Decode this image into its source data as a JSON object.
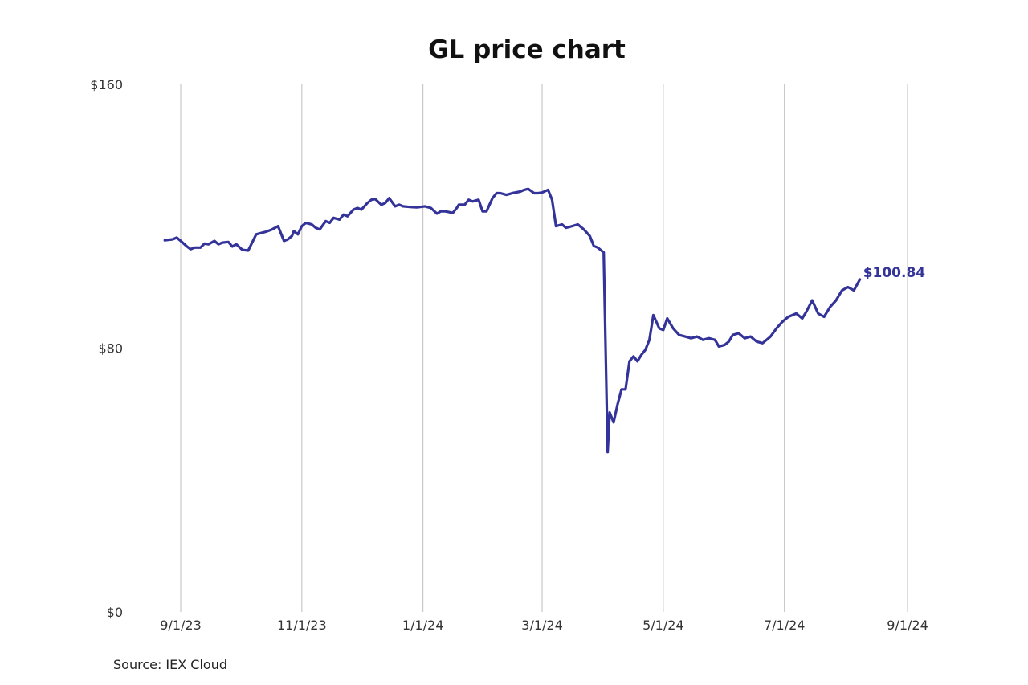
{
  "chart_data": {
    "type": "line",
    "title": "GL price chart",
    "source": "Source: IEX Cloud",
    "last_value_label": "$100.84",
    "xlabel": "",
    "ylabel": "",
    "ylim": [
      0,
      160
    ],
    "y_ticks": [
      {
        "value": 0,
        "label": "$0"
      },
      {
        "value": 80,
        "label": "$80"
      },
      {
        "value": 160,
        "label": "$160"
      }
    ],
    "x_ticks": [
      {
        "date": "2023-09-01",
        "label": "9/1/23"
      },
      {
        "date": "2023-11-01",
        "label": "11/1/23"
      },
      {
        "date": "2024-01-01",
        "label": "1/1/24"
      },
      {
        "date": "2024-03-01",
        "label": "3/1/24"
      },
      {
        "date": "2024-05-01",
        "label": "5/1/24"
      },
      {
        "date": "2024-07-01",
        "label": "7/1/24"
      },
      {
        "date": "2024-09-01",
        "label": "9/1/24"
      }
    ],
    "x_range": [
      "2023-08-24",
      "2024-09-01"
    ],
    "grid": "vertical",
    "series": [
      {
        "color": "#333399",
        "points": [
          [
            "2023-08-24",
            112.7
          ],
          [
            "2023-08-28",
            113.0
          ],
          [
            "2023-08-30",
            113.5
          ],
          [
            "2023-09-01",
            112.5
          ],
          [
            "2023-09-04",
            110.9
          ],
          [
            "2023-09-06",
            110.0
          ],
          [
            "2023-09-08",
            110.5
          ],
          [
            "2023-09-11",
            110.5
          ],
          [
            "2023-09-13",
            111.7
          ],
          [
            "2023-09-15",
            111.5
          ],
          [
            "2023-09-18",
            112.5
          ],
          [
            "2023-09-20",
            111.5
          ],
          [
            "2023-09-22",
            112.0
          ],
          [
            "2023-09-25",
            112.2
          ],
          [
            "2023-09-27",
            110.8
          ],
          [
            "2023-09-29",
            111.5
          ],
          [
            "2023-10-02",
            109.8
          ],
          [
            "2023-10-05",
            109.6
          ],
          [
            "2023-10-06",
            110.8
          ],
          [
            "2023-10-09",
            114.5
          ],
          [
            "2023-10-12",
            115.0
          ],
          [
            "2023-10-14",
            115.3
          ],
          [
            "2023-10-17",
            116.0
          ],
          [
            "2023-10-20",
            117.0
          ],
          [
            "2023-10-23",
            112.5
          ],
          [
            "2023-10-25",
            113.0
          ],
          [
            "2023-10-27",
            114.0
          ],
          [
            "2023-10-28",
            115.5
          ],
          [
            "2023-10-30",
            114.5
          ],
          [
            "2023-11-01",
            117.0
          ],
          [
            "2023-11-03",
            118.0
          ],
          [
            "2023-11-06",
            117.5
          ],
          [
            "2023-11-08",
            116.5
          ],
          [
            "2023-11-10",
            116.0
          ],
          [
            "2023-11-13",
            118.5
          ],
          [
            "2023-11-15",
            118.0
          ],
          [
            "2023-11-17",
            119.5
          ],
          [
            "2023-11-20",
            119.0
          ],
          [
            "2023-11-22",
            120.5
          ],
          [
            "2023-11-24",
            120.0
          ],
          [
            "2023-11-27",
            122.0
          ],
          [
            "2023-11-29",
            122.5
          ],
          [
            "2023-12-01",
            122.0
          ],
          [
            "2023-12-04",
            124.0
          ],
          [
            "2023-12-06",
            125.0
          ],
          [
            "2023-12-08",
            125.2
          ],
          [
            "2023-12-11",
            123.5
          ],
          [
            "2023-12-13",
            124.0
          ],
          [
            "2023-12-15",
            125.5
          ],
          [
            "2023-12-18",
            123.0
          ],
          [
            "2023-12-20",
            123.5
          ],
          [
            "2023-12-22",
            123.0
          ],
          [
            "2023-12-26",
            122.8
          ],
          [
            "2023-12-29",
            122.7
          ],
          [
            "2024-01-02",
            123.0
          ],
          [
            "2024-01-05",
            122.5
          ],
          [
            "2024-01-08",
            120.8
          ],
          [
            "2024-01-10",
            121.5
          ],
          [
            "2024-01-12",
            121.5
          ],
          [
            "2024-01-16",
            121.0
          ],
          [
            "2024-01-18",
            122.5
          ],
          [
            "2024-01-19",
            123.5
          ],
          [
            "2024-01-22",
            123.5
          ],
          [
            "2024-01-24",
            125.0
          ],
          [
            "2024-01-26",
            124.5
          ],
          [
            "2024-01-29",
            125.0
          ],
          [
            "2024-01-31",
            121.5
          ],
          [
            "2024-02-02",
            121.5
          ],
          [
            "2024-02-05",
            125.5
          ],
          [
            "2024-02-07",
            127.0
          ],
          [
            "2024-02-09",
            127.0
          ],
          [
            "2024-02-12",
            126.5
          ],
          [
            "2024-02-15",
            127.0
          ],
          [
            "2024-02-19",
            127.5
          ],
          [
            "2024-02-21",
            128.0
          ],
          [
            "2024-02-23",
            128.3
          ],
          [
            "2024-02-26",
            127.0
          ],
          [
            "2024-02-28",
            127.0
          ],
          [
            "2024-03-01",
            127.2
          ],
          [
            "2024-03-04",
            128.0
          ],
          [
            "2024-03-06",
            125.0
          ],
          [
            "2024-03-08",
            117.0
          ],
          [
            "2024-03-11",
            117.5
          ],
          [
            "2024-03-13",
            116.5
          ],
          [
            "2024-03-15",
            116.8
          ],
          [
            "2024-03-19",
            117.5
          ],
          [
            "2024-03-22",
            116.0
          ],
          [
            "2024-03-25",
            114.0
          ],
          [
            "2024-03-27",
            111.0
          ],
          [
            "2024-03-29",
            110.5
          ],
          [
            "2024-04-01",
            109.0
          ],
          [
            "2024-04-03",
            48.5
          ],
          [
            "2024-04-04",
            60.5
          ],
          [
            "2024-04-06",
            57.5
          ],
          [
            "2024-04-08",
            63.0
          ],
          [
            "2024-04-10",
            67.5
          ],
          [
            "2024-04-12",
            67.5
          ],
          [
            "2024-04-14",
            76.0
          ],
          [
            "2024-04-16",
            77.5
          ],
          [
            "2024-04-18",
            76.0
          ],
          [
            "2024-04-20",
            78.0
          ],
          [
            "2024-04-22",
            79.5
          ],
          [
            "2024-04-24",
            82.5
          ],
          [
            "2024-04-26",
            90.0
          ],
          [
            "2024-04-29",
            86.0
          ],
          [
            "2024-05-01",
            85.5
          ],
          [
            "2024-05-03",
            89.0
          ],
          [
            "2024-05-06",
            86.0
          ],
          [
            "2024-05-09",
            84.0
          ],
          [
            "2024-05-12",
            83.5
          ],
          [
            "2024-05-15",
            83.0
          ],
          [
            "2024-05-18",
            83.5
          ],
          [
            "2024-05-21",
            82.5
          ],
          [
            "2024-05-24",
            83.0
          ],
          [
            "2024-05-27",
            82.5
          ],
          [
            "2024-05-29",
            80.5
          ],
          [
            "2024-06-01",
            81.0
          ],
          [
            "2024-06-03",
            82.0
          ],
          [
            "2024-06-05",
            84.0
          ],
          [
            "2024-06-08",
            84.5
          ],
          [
            "2024-06-11",
            83.0
          ],
          [
            "2024-06-14",
            83.5
          ],
          [
            "2024-06-17",
            82.0
          ],
          [
            "2024-06-20",
            81.5
          ],
          [
            "2024-06-24",
            83.5
          ],
          [
            "2024-06-27",
            86.0
          ],
          [
            "2024-06-30",
            88.0
          ],
          [
            "2024-07-03",
            89.5
          ],
          [
            "2024-07-07",
            90.5
          ],
          [
            "2024-07-10",
            89.0
          ],
          [
            "2024-07-12",
            91.0
          ],
          [
            "2024-07-15",
            94.5
          ],
          [
            "2024-07-18",
            90.5
          ],
          [
            "2024-07-21",
            89.5
          ],
          [
            "2024-07-24",
            92.5
          ],
          [
            "2024-07-27",
            94.5
          ],
          [
            "2024-07-30",
            97.5
          ],
          [
            "2024-08-02",
            98.5
          ],
          [
            "2024-08-05",
            97.5
          ],
          [
            "2024-08-08",
            100.84
          ]
        ]
      }
    ]
  }
}
